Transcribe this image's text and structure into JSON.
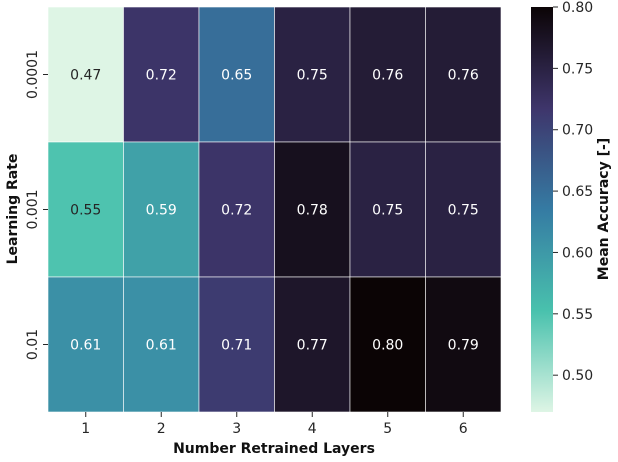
{
  "chart_data": {
    "type": "heatmap",
    "xlabel": "Number Retrained Layers",
    "ylabel": "Learning Rate",
    "x_categories": [
      "1",
      "2",
      "3",
      "4",
      "5",
      "6"
    ],
    "y_categories": [
      "0.0001",
      "0.001",
      "0.01"
    ],
    "values": [
      [
        0.47,
        0.72,
        0.65,
        0.75,
        0.76,
        0.76
      ],
      [
        0.55,
        0.59,
        0.72,
        0.78,
        0.75,
        0.75
      ],
      [
        0.61,
        0.61,
        0.71,
        0.77,
        0.8,
        0.79
      ]
    ],
    "value_labels": [
      [
        "0.47",
        "0.72",
        "0.65",
        "0.75",
        "0.76",
        "0.76"
      ],
      [
        "0.55",
        "0.59",
        "0.72",
        "0.78",
        "0.75",
        "0.75"
      ],
      [
        "0.61",
        "0.61",
        "0.71",
        "0.77",
        "0.80",
        "0.79"
      ]
    ],
    "colorbar": {
      "label": "Mean Accuracy [-]",
      "range": [
        0.47,
        0.8
      ],
      "ticks": [
        "0.50",
        "0.55",
        "0.60",
        "0.65",
        "0.70",
        "0.75",
        "0.80"
      ],
      "colormap": "mako_r",
      "colormap_stops": [
        "#def5e5",
        "#49c1ad",
        "#357ba3",
        "#3e356b",
        "#0b0405"
      ]
    }
  }
}
